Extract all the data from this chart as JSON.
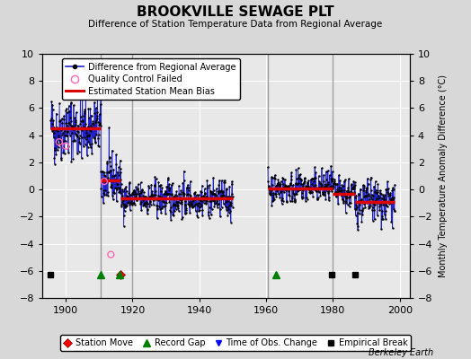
{
  "title": "BROOKVILLE SEWAGE PLT",
  "subtitle": "Difference of Station Temperature Data from Regional Average",
  "ylabel": "Monthly Temperature Anomaly Difference (°C)",
  "xlabel_credit": "Berkeley Earth",
  "xlim": [
    1893,
    2003
  ],
  "ylim": [
    -8,
    10
  ],
  "yticks": [
    -8,
    -6,
    -4,
    -2,
    0,
    2,
    4,
    6,
    8,
    10
  ],
  "xticks": [
    1900,
    1920,
    1940,
    1960,
    1980,
    2000
  ],
  "bg_color": "#d8d8d8",
  "plot_bg_color": "#e8e8e8",
  "line_color": "#2222cc",
  "dot_color": "#000000",
  "bias_color": "#dd0000",
  "qc_color": "#ff69b4",
  "grid_color": "#ffffff",
  "vline_color": "#888888",
  "seed": 42,
  "station_moves": [
    1916.5
  ],
  "record_gaps": [
    1910.5,
    1916.0,
    1963.0
  ],
  "time_of_obs": [],
  "empirical_breaks": [
    1895.5,
    1979.5,
    1986.5
  ],
  "seg1_start": 1895.5,
  "seg1_end": 1950.0,
  "seg2_start": 1960.5,
  "seg2_end": 1998.5,
  "vlines": [
    1910.5,
    1920.0,
    1960.5,
    1980.0
  ],
  "bias_segments": [
    {
      "x": [
        1895.5,
        1910.5
      ],
      "y": [
        4.5,
        4.5
      ]
    },
    {
      "x": [
        1910.5,
        1916.5
      ],
      "y": [
        0.7,
        0.7
      ]
    },
    {
      "x": [
        1916.5,
        1950.0
      ],
      "y": [
        -0.65,
        -0.65
      ]
    },
    {
      "x": [
        1960.5,
        1980.0
      ],
      "y": [
        0.1,
        0.1
      ]
    },
    {
      "x": [
        1980.0,
        1986.5
      ],
      "y": [
        -0.3,
        -0.3
      ]
    },
    {
      "x": [
        1986.5,
        1998.5
      ],
      "y": [
        -0.9,
        -0.9
      ]
    }
  ],
  "qc_points": [
    [
      1898.0,
      3.5
    ],
    [
      1900.0,
      3.2
    ],
    [
      1911.5,
      0.6
    ],
    [
      1913.5,
      -4.8
    ]
  ]
}
